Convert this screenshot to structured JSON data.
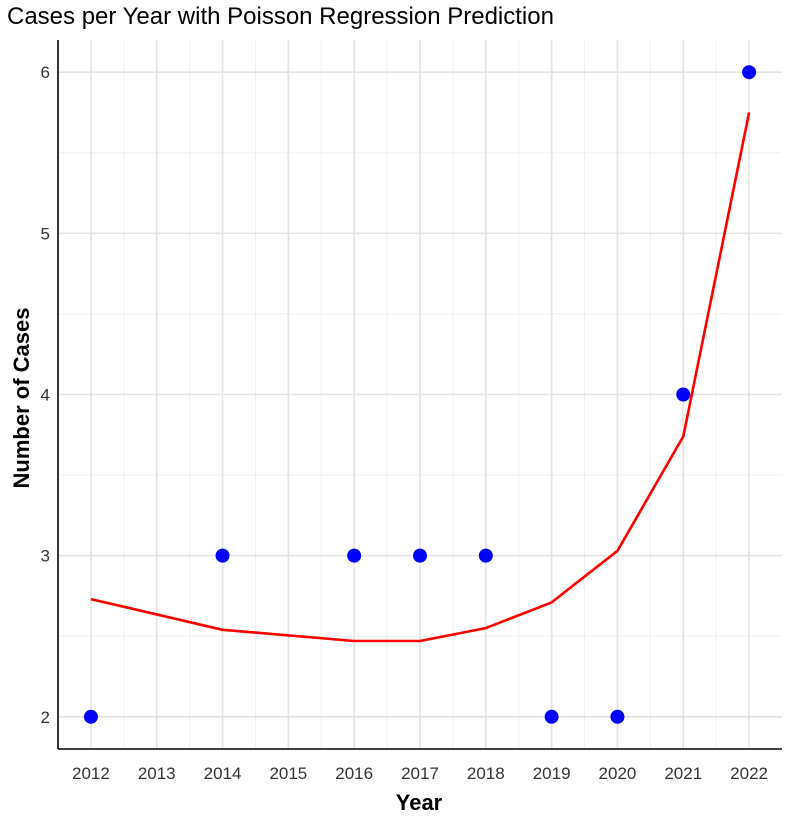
{
  "chart_data": {
    "type": "scatter",
    "title": "Cases per Year with Poisson Regression Prediction",
    "xlabel": "Year",
    "ylabel": "Number of Cases",
    "x_ticks": [
      "2012",
      "2013",
      "2014",
      "2015",
      "2016",
      "2017",
      "2018",
      "2019",
      "2020",
      "2021",
      "2022"
    ],
    "y_ticks": [
      "2",
      "3",
      "4",
      "5",
      "6"
    ],
    "xlim": [
      2011.5,
      2022.5
    ],
    "ylim": [
      1.8,
      6.2
    ],
    "grid": true,
    "series": [
      {
        "kind": "points",
        "color": "#0000ff",
        "points": [
          {
            "x": 2012,
            "y": 2
          },
          {
            "x": 2014,
            "y": 3
          },
          {
            "x": 2016,
            "y": 3
          },
          {
            "x": 2017,
            "y": 3
          },
          {
            "x": 2018,
            "y": 3
          },
          {
            "x": 2019,
            "y": 2
          },
          {
            "x": 2020,
            "y": 2
          },
          {
            "x": 2021,
            "y": 4
          },
          {
            "x": 2022,
            "y": 6
          }
        ]
      },
      {
        "kind": "line",
        "color": "#ff0000",
        "points": [
          {
            "x": 2012,
            "y": 2.73
          },
          {
            "x": 2014,
            "y": 2.54
          },
          {
            "x": 2016,
            "y": 2.47
          },
          {
            "x": 2017,
            "y": 2.47
          },
          {
            "x": 2018,
            "y": 2.55
          },
          {
            "x": 2019,
            "y": 2.71
          },
          {
            "x": 2020,
            "y": 3.03
          },
          {
            "x": 2021,
            "y": 3.74
          },
          {
            "x": 2022,
            "y": 5.75
          }
        ]
      }
    ]
  }
}
